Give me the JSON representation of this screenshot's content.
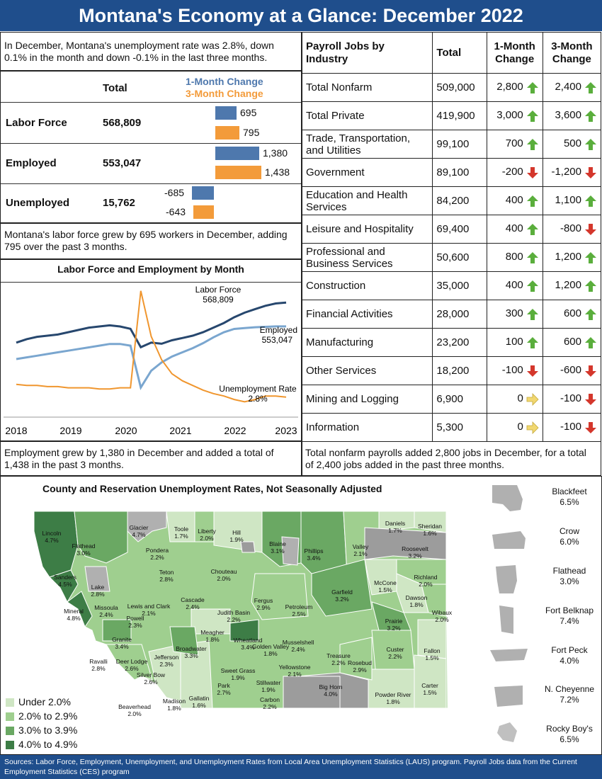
{
  "header": {
    "title": "Montana's Economy at a Glance: December 2022"
  },
  "intro_text": "In December, Montana's unemployment rate was 2.8%, down 0.1% in the month and down -0.1% in the last three months.",
  "labor_table": {
    "total_header": "Total",
    "legend_1m": "1-Month Change",
    "legend_3m": "3-Month Change",
    "rows": [
      {
        "label": "Labor Force",
        "total": "568,809",
        "m1": "695",
        "m3": "795"
      },
      {
        "label": "Employed",
        "total": "553,047",
        "m1": "1,380",
        "m3": "1,438"
      },
      {
        "label": "Unemployed",
        "total": "15,762",
        "m1": "-685",
        "m3": "-643"
      }
    ]
  },
  "labor_note": "Montana's labor force grew by 695 workers in December, adding 795 over the past 3 months.",
  "chart_data": {
    "type": "line",
    "title": "Labor Force and Employment by Month",
    "x_ticks": [
      "2018",
      "2019",
      "2020",
      "2021",
      "2022",
      "2023"
    ],
    "annotations": {
      "labor_force_label": "Labor Force",
      "labor_force_value": "568,809",
      "employed_label": "Employed",
      "employed_value": "553,047",
      "unemp_label": "Unemployment Rate",
      "unemp_value": "2.8%"
    },
    "series": [
      {
        "name": "Labor Force",
        "color": "#27476e",
        "values": [
          534000,
          537000,
          539000,
          540000,
          541000,
          543000,
          545000,
          547000,
          548000,
          549000,
          548000,
          546000,
          530000,
          534000,
          533000,
          536000,
          538000,
          540000,
          543000,
          547000,
          551000,
          556000,
          560000,
          563000,
          566000,
          568000,
          568809
        ]
      },
      {
        "name": "Employed",
        "color": "#7aa6cf",
        "values": [
          514000,
          516000,
          518000,
          520000,
          522000,
          524000,
          526000,
          528000,
          530000,
          532000,
          532000,
          530000,
          480000,
          500000,
          510000,
          517000,
          522000,
          527000,
          533000,
          540000,
          546000,
          550000,
          551000,
          552000,
          552500,
          553000,
          553047
        ]
      },
      {
        "name": "Unemployment Rate",
        "color": "#f0962e",
        "values": [
          3.9,
          3.8,
          3.8,
          3.7,
          3.7,
          3.6,
          3.6,
          3.6,
          3.5,
          3.5,
          3.6,
          3.6,
          11.9,
          8.0,
          6.0,
          4.8,
          4.2,
          3.8,
          3.4,
          3.1,
          2.9,
          2.6,
          2.4,
          2.6,
          2.9,
          2.9,
          2.8
        ]
      }
    ]
  },
  "emp_note": "Employment grew by 1,380 in December and added a total of 1,438 in the past 3 months.",
  "jobs_table": {
    "headers": [
      "Payroll Jobs by Industry",
      "Total",
      "1-Month Change",
      "3-Month Change"
    ],
    "rows": [
      {
        "industry": "Total Nonfarm",
        "total": "509,000",
        "m1": "2,800",
        "m1_dir": "up",
        "m3": "2,400",
        "m3_dir": "up"
      },
      {
        "industry": "Total Private",
        "total": "419,900",
        "m1": "3,000",
        "m1_dir": "up",
        "m3": "3,600",
        "m3_dir": "up"
      },
      {
        "industry": "Trade, Transportation, and Utilities",
        "total": "99,100",
        "m1": "700",
        "m1_dir": "up",
        "m3": "500",
        "m3_dir": "up"
      },
      {
        "industry": "Government",
        "total": "89,100",
        "m1": "-200",
        "m1_dir": "down",
        "m3": "-1,200",
        "m3_dir": "down"
      },
      {
        "industry": "Education and Health Services",
        "total": "84,200",
        "m1": "400",
        "m1_dir": "up",
        "m3": "1,100",
        "m3_dir": "up"
      },
      {
        "industry": "Leisure and Hospitality",
        "total": "69,400",
        "m1": "400",
        "m1_dir": "up",
        "m3": "-800",
        "m3_dir": "down"
      },
      {
        "industry": "Professional and Business Services",
        "total": "50,600",
        "m1": "800",
        "m1_dir": "up",
        "m3": "1,200",
        "m3_dir": "up"
      },
      {
        "industry": "Construction",
        "total": "35,000",
        "m1": "400",
        "m1_dir": "up",
        "m3": "1,200",
        "m3_dir": "up"
      },
      {
        "industry": "Financial Activities",
        "total": "28,000",
        "m1": "300",
        "m1_dir": "up",
        "m3": "600",
        "m3_dir": "up"
      },
      {
        "industry": "Manufacturing",
        "total": "23,200",
        "m1": "100",
        "m1_dir": "up",
        "m3": "600",
        "m3_dir": "up"
      },
      {
        "industry": "Other Services",
        "total": "18,200",
        "m1": "-100",
        "m1_dir": "down",
        "m3": "-600",
        "m3_dir": "down"
      },
      {
        "industry": "Mining and Logging",
        "total": "6,900",
        "m1": "0",
        "m1_dir": "flat",
        "m3": "-100",
        "m3_dir": "down"
      },
      {
        "industry": "Information",
        "total": "5,300",
        "m1": "0",
        "m1_dir": "flat",
        "m3": "-100",
        "m3_dir": "down"
      }
    ]
  },
  "jobs_note": "Total nonfarm payrolls added 2,800 jobs in December, for a total of 2,400 jobs added in the past three months.",
  "map": {
    "title": "County and Reservation Unemployment Rates, Not Seasonally Adjusted",
    "legend": [
      {
        "label": "Under 2.0%",
        "color": "#cfe6c4"
      },
      {
        "label": "2.0% to 2.9%",
        "color": "#9fcf8f"
      },
      {
        "label": "3.0% to 3.9%",
        "color": "#6aa863"
      },
      {
        "label": "4.0% to 4.9%",
        "color": "#3d7d46"
      }
    ],
    "counties": [
      {
        "name": "Lincoln",
        "rate": "4.7%"
      },
      {
        "name": "Flathead",
        "rate": "3.0%"
      },
      {
        "name": "Glacier",
        "rate": "4.7%"
      },
      {
        "name": "Toole",
        "rate": "1.7%"
      },
      {
        "name": "Liberty",
        "rate": "2.0%"
      },
      {
        "name": "Hill",
        "rate": "1.9%"
      },
      {
        "name": "Blaine",
        "rate": "3.1%"
      },
      {
        "name": "Phillips",
        "rate": "3.4%"
      },
      {
        "name": "Valley",
        "rate": "2.1%"
      },
      {
        "name": "Daniels",
        "rate": "1.7%"
      },
      {
        "name": "Sheridan",
        "rate": "1.6%"
      },
      {
        "name": "Roosevelt",
        "rate": "3.2%"
      },
      {
        "name": "Pondera",
        "rate": "2.2%"
      },
      {
        "name": "Teton",
        "rate": "2.8%"
      },
      {
        "name": "Chouteau",
        "rate": "2.0%"
      },
      {
        "name": "Sanders",
        "rate": "4.5%"
      },
      {
        "name": "Lake",
        "rate": "2.8%"
      },
      {
        "name": "Mineral",
        "rate": "4.8%"
      },
      {
        "name": "Missoula",
        "rate": "2.4%"
      },
      {
        "name": "Lewis and Clark",
        "rate": "2.1%"
      },
      {
        "name": "Cascade",
        "rate": "2.4%"
      },
      {
        "name": "Judith Basin",
        "rate": "2.2%"
      },
      {
        "name": "Fergus",
        "rate": "2.9%"
      },
      {
        "name": "Petroleum",
        "rate": "2.5%"
      },
      {
        "name": "Garfield",
        "rate": "3.2%"
      },
      {
        "name": "McCone",
        "rate": "1.5%"
      },
      {
        "name": "Richland",
        "rate": "2.0%"
      },
      {
        "name": "Dawson",
        "rate": "1.8%"
      },
      {
        "name": "Wibaux",
        "rate": "2.0%"
      },
      {
        "name": "Prairie",
        "rate": "3.2%"
      },
      {
        "name": "Powell",
        "rate": "2.3%"
      },
      {
        "name": "Granite",
        "rate": "3.4%"
      },
      {
        "name": "Meagher",
        "rate": "1.8%"
      },
      {
        "name": "Wheatland",
        "rate": "3.4%"
      },
      {
        "name": "Golden Valley",
        "rate": "1.8%"
      },
      {
        "name": "Musselshell",
        "rate": "2.4%"
      },
      {
        "name": "Ravalli",
        "rate": "2.8%"
      },
      {
        "name": "Deer Lodge",
        "rate": "2.6%"
      },
      {
        "name": "Jefferson",
        "rate": "2.3%"
      },
      {
        "name": "Broadwater",
        "rate": "3.3%"
      },
      {
        "name": "Silver Bow",
        "rate": "2.6%"
      },
      {
        "name": "Custer",
        "rate": "2.2%"
      },
      {
        "name": "Fallon",
        "rate": "1.5%"
      },
      {
        "name": "Treasure",
        "rate": "2.2%"
      },
      {
        "name": "Rosebud",
        "rate": "2.9%"
      },
      {
        "name": "Yellowstone",
        "rate": "2.1%"
      },
      {
        "name": "Sweet Grass",
        "rate": "1.9%"
      },
      {
        "name": "Stillwater",
        "rate": "1.9%"
      },
      {
        "name": "Park",
        "rate": "2.7%"
      },
      {
        "name": "Gallatin",
        "rate": "1.6%"
      },
      {
        "name": "Madison",
        "rate": "1.8%"
      },
      {
        "name": "Beaverhead",
        "rate": "2.0%"
      },
      {
        "name": "Carbon",
        "rate": "2.2%"
      },
      {
        "name": "Big Horn",
        "rate": "4.0%"
      },
      {
        "name": "Carter",
        "rate": "1.5%"
      },
      {
        "name": "Powder River",
        "rate": "1.8%"
      }
    ],
    "reservations": [
      {
        "name": "Blackfeet",
        "rate": "6.5%"
      },
      {
        "name": "Crow",
        "rate": "6.0%"
      },
      {
        "name": "Flathead",
        "rate": "3.0%"
      },
      {
        "name": "Fort Belknap",
        "rate": "7.4%"
      },
      {
        "name": "Fort Peck",
        "rate": "4.0%"
      },
      {
        "name": "N. Cheyenne",
        "rate": "7.2%"
      },
      {
        "name": "Rocky Boy's",
        "rate": "6.5%"
      }
    ]
  },
  "footer": "Sources: Labor Force, Employment, Unemployment, and Unemployment Rates from Local Area Unemployment Statistics (LAUS) program. Payroll Jobs data from the Current Employment Statistics (CES) program"
}
